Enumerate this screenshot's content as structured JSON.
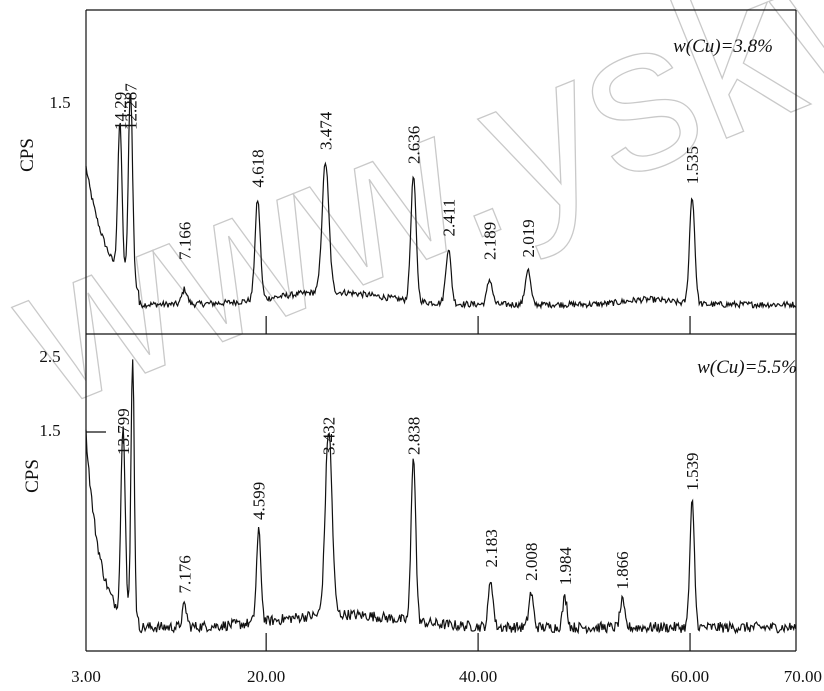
{
  "watermark": "www.yskw.ac",
  "chart_data": [
    {
      "type": "line",
      "panel": "top",
      "annotation": "w(Cu)=3.8%",
      "ylabel": "CPS",
      "yticks": [
        "1.5"
      ],
      "x_range": [
        3,
        70
      ],
      "peaks": [
        {
          "x": 6.2,
          "label": "14.29",
          "height": 0.6
        },
        {
          "x": 7.2,
          "label": "12.287",
          "height": 0.78
        },
        {
          "x": 12.3,
          "label": "7.166",
          "height": 0.06
        },
        {
          "x": 19.2,
          "label": "4.618",
          "height": 0.4
        },
        {
          "x": 25.6,
          "label": "3.474",
          "height": 0.52
        },
        {
          "x": 33.9,
          "label": "2.636",
          "height": 0.5
        },
        {
          "x": 37.2,
          "label": "2.411",
          "height": 0.22
        },
        {
          "x": 41.1,
          "label": "2.189",
          "height": 0.1
        },
        {
          "x": 44.7,
          "label": "2.019",
          "height": 0.14
        },
        {
          "x": 60.2,
          "label": "1.535",
          "height": 0.43
        }
      ]
    },
    {
      "type": "line",
      "panel": "bottom",
      "annotation": "w(Cu)=5.5%",
      "ylabel": "CPS",
      "yticks": [
        "2.5",
        "1.5"
      ],
      "xlabels": [
        "3.00",
        "20.00",
        "40.00",
        "60.00",
        "70.00"
      ],
      "x_range": [
        3,
        70
      ],
      "peaks": [
        {
          "x": 6.5,
          "label": "13.799",
          "height": 0.45
        },
        {
          "x": 12.3,
          "label": "7.176",
          "height": 0.05
        },
        {
          "x": 19.3,
          "label": "4.599",
          "height": 0.21
        },
        {
          "x": 25.9,
          "label": "3.432",
          "height": 0.43
        },
        {
          "x": 33.9,
          "label": "2.838",
          "height": 0.39
        },
        {
          "x": 41.2,
          "label": "2.183",
          "height": 0.11
        },
        {
          "x": 45.0,
          "label": "2.008",
          "height": 0.08
        },
        {
          "x": 48.2,
          "label": "1.984",
          "height": 0.07
        },
        {
          "x": 53.6,
          "label": "1.866",
          "height": 0.06
        },
        {
          "x": 60.2,
          "label": "1.539",
          "height": 0.29
        }
      ]
    }
  ]
}
